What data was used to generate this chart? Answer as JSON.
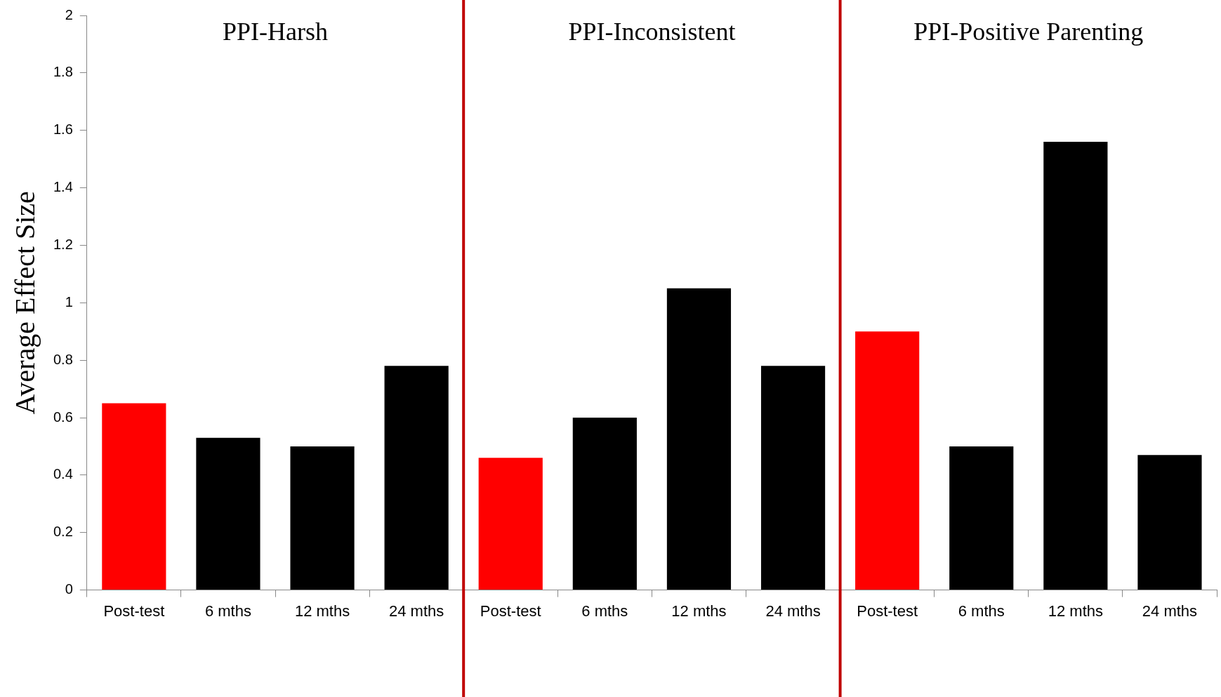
{
  "chart_data": {
    "type": "bar",
    "ylabel": "Average Effect Size",
    "categories": [
      "Post-test",
      "6 mths",
      "12 mths",
      "24 mths",
      "Post-test",
      "6 mths",
      "12 mths",
      "24 mths",
      "Post-test",
      "6 mths",
      "12 mths",
      "24 mths"
    ],
    "values": [
      0.65,
      0.53,
      0.5,
      0.78,
      0.46,
      0.6,
      1.05,
      0.78,
      0.9,
      0.5,
      1.56,
      0.47
    ],
    "colors": [
      "#ff0000",
      "#000000",
      "#000000",
      "#000000",
      "#ff0000",
      "#000000",
      "#000000",
      "#000000",
      "#ff0000",
      "#000000",
      "#000000",
      "#000000"
    ],
    "ylim": [
      0,
      2
    ],
    "yticks": [
      0,
      0.2,
      0.4,
      0.6,
      0.8,
      1,
      1.2,
      1.4,
      1.6,
      1.8,
      2
    ],
    "annotations": [
      "PPI-Harsh",
      "PPI-Inconsistent",
      "PPI-Positive Parenting"
    ],
    "grid": false,
    "legend": false
  }
}
